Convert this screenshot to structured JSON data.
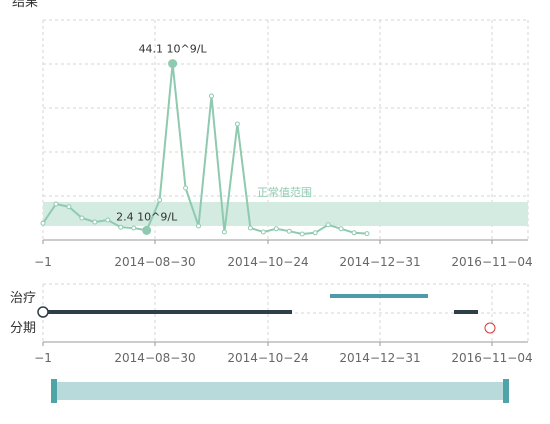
{
  "colors": {
    "line": "#8fcab0",
    "band": "#d4ebe1",
    "grid": "#d6d6d6",
    "axis": "#999999",
    "dark_bar": "#2e3f48",
    "teal_bar": "#4f9aa8",
    "scroll_track": "#b8dadb",
    "scroll_handle": "#4fa4a8",
    "red_marker": "#d23c3c",
    "text": "#333333",
    "label": "#666666"
  },
  "labels": {
    "top_title": "结果",
    "row1": "治疗",
    "row2": "分期"
  },
  "chart_data": [
    {
      "type": "line",
      "x_ticks": [
        "−1",
        "2014−08−30",
        "2014−10−24",
        "2014−12−31",
        "2016−11−04"
      ],
      "series": [
        {
          "values": [
            4.2,
            9.0,
            8.3,
            5.5,
            4.5,
            5.0,
            3.2,
            3.0,
            2.4,
            10.0,
            44.1,
            13.0,
            3.5,
            36.0,
            2.0,
            29.0,
            3.0,
            2.0,
            2.8,
            2.2,
            1.5,
            1.8,
            3.8,
            2.8,
            1.8,
            1.6
          ]
        }
      ],
      "annotations": [
        {
          "index": 10,
          "label": "44.1 10^9/L"
        },
        {
          "index": 8,
          "label": "2.4 10^9/L"
        }
      ],
      "reference_band": {
        "label": "正常值范围",
        "range": [
          3.5,
          9.5
        ]
      },
      "ylim": [
        0,
        55
      ],
      "grid": true
    },
    {
      "type": "timeline",
      "x_ticks": [
        "−1",
        "2014−08−30",
        "2014−10−24",
        "2014−12−31",
        "2016−11−04"
      ],
      "rows": [
        "治疗",
        "分期"
      ]
    }
  ]
}
